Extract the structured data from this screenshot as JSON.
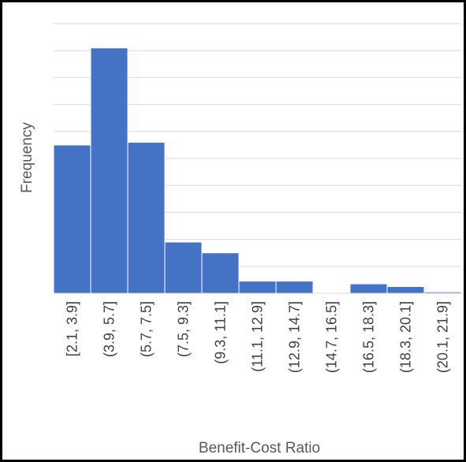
{
  "chart_data": {
    "type": "bar",
    "title": "",
    "xlabel": "Benefit-Cost Ratio",
    "ylabel": "Frequency",
    "categories": [
      "[2.1, 3.9]",
      "(3.9, 5.7]",
      "(5.7, 7.5]",
      "(7.5, 9.3]",
      "(9.3, 11.1]",
      "(11.1, 12.9]",
      "(12.9, 14.7]",
      "(14.7, 16.5]",
      "(16.5, 18.3]",
      "(18.3, 20.1]",
      "(20.1, 21.9]"
    ],
    "values": [
      5.5,
      9.1,
      5.6,
      1.9,
      1.5,
      0.45,
      0.45,
      0,
      0.35,
      0.25,
      0.05
    ],
    "ylim": [
      0,
      10
    ],
    "grid": true,
    "bar_color": "#4472C4",
    "grid_color": "#d9d9d9",
    "legend": "none"
  }
}
